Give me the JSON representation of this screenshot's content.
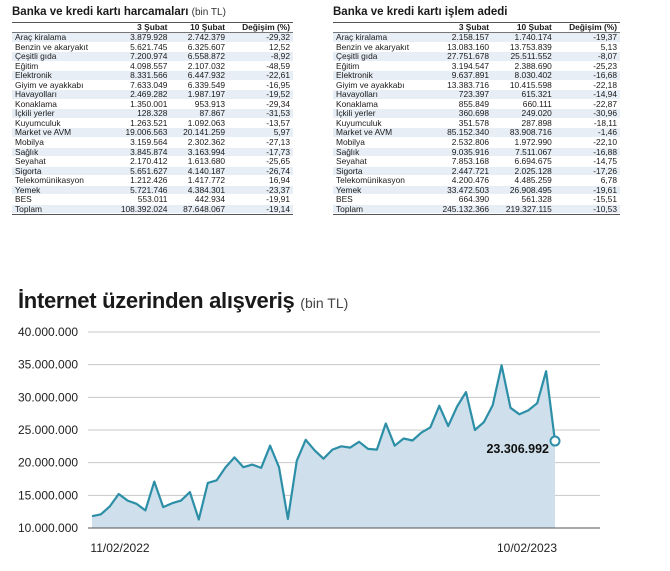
{
  "left_table": {
    "title": "Banka ve kredi kartı harcamaları",
    "unit": "(bin TL)",
    "headers": [
      "",
      "3 Şubat",
      "10 Şubat",
      "Değişim (%)"
    ],
    "rows": [
      [
        "Araç kiralama",
        "3.879.928",
        "2.742.379",
        "-29,32"
      ],
      [
        "Benzin ve akaryakıt",
        "5.621.745",
        "6.325.607",
        "12,52"
      ],
      [
        "Çeşitli gıda",
        "7.200.974",
        "6.558.872",
        "-8,92"
      ],
      [
        "Eğitim",
        "4.098.557",
        "2.107.032",
        "-48,59"
      ],
      [
        "Elektronik",
        "8.331.566",
        "6.447.932",
        "-22,61"
      ],
      [
        "Giyim ve ayakkabı",
        "7.633.049",
        "6.339.549",
        "-16,95"
      ],
      [
        "Havayolları",
        "2.469.282",
        "1.987.197",
        "-19,52"
      ],
      [
        "Konaklama",
        "1.350.001",
        "953.913",
        "-29,34"
      ],
      [
        "İçkili yerler",
        "128.328",
        "87.867",
        "-31,53"
      ],
      [
        "Kuyumculuk",
        "1.263.521",
        "1.092.063",
        "-13,57"
      ],
      [
        "Market ve AVM",
        "19.006.563",
        "20.141.259",
        "5,97"
      ],
      [
        "Mobilya",
        "3.159.564",
        "2.302.362",
        "-27,13"
      ],
      [
        "Sağlık",
        "3.845.874",
        "3.163.994",
        "-17,73"
      ],
      [
        "Seyahat",
        "2.170.412",
        "1.613.680",
        "-25,65"
      ],
      [
        "Sigorta",
        "5.651.627",
        "4.140.187",
        "-26,74"
      ],
      [
        "Telekomünikasyon",
        "1.212.426",
        "1.417.772",
        "16,94"
      ],
      [
        "Yemek",
        "5.721.746",
        "4.384.301",
        "-23,37"
      ],
      [
        "BES",
        "553.011",
        "442.934",
        "-19,91"
      ],
      [
        "Toplam",
        "108.392.024",
        "87.648.067",
        "-19,14"
      ]
    ]
  },
  "right_table": {
    "title": "Banka ve kredi kartı işlem adedi",
    "headers": [
      "",
      "3 Şubat",
      "10 Şubat",
      "Değişim (%)"
    ],
    "rows": [
      [
        "Araç kiralama",
        "2.158.157",
        "1.740.174",
        "-19,37"
      ],
      [
        "Benzin ve akaryakıt",
        "13.083.160",
        "13.753.839",
        "5,13"
      ],
      [
        "Çeşitli gıda",
        "27.751.678",
        "25.511.552",
        "-8,07"
      ],
      [
        "Eğitim",
        "3.194.547",
        "2.388.690",
        "-25,23"
      ],
      [
        "Elektronik",
        "9.637.891",
        "8.030.402",
        "-16,68"
      ],
      [
        "Giyim ve ayakkabı",
        "13.383.716",
        "10.415.598",
        "-22,18"
      ],
      [
        "Havayolları",
        "723.397",
        "615.321",
        "-14,94"
      ],
      [
        "Konaklama",
        "855.849",
        "660.111",
        "-22,87"
      ],
      [
        "İçkili yerler",
        "360.698",
        "249.020",
        "-30,96"
      ],
      [
        "Kuyumculuk",
        "351.578",
        "287.898",
        "-18,11"
      ],
      [
        "Market ve AVM",
        "85.152.340",
        "83.908.716",
        "-1,46"
      ],
      [
        "Mobilya",
        "2.532.806",
        "1.972.990",
        "-22,10"
      ],
      [
        "Sağlık",
        "9.035.916",
        "7.511.067",
        "-16,88"
      ],
      [
        "Seyahat",
        "7.853.168",
        "6.694.675",
        "-14,75"
      ],
      [
        "Sigorta",
        "2.447.721",
        "2.025.128",
        "-17,26"
      ],
      [
        "Telekomünikasyon",
        "4.200.476",
        "4.485.259",
        "6,78"
      ],
      [
        "Yemek",
        "33.472.503",
        "26.908.495",
        "-19,61"
      ],
      [
        "BES",
        "664.390",
        "561.328",
        "-15,51"
      ],
      [
        "Toplam",
        "245.132.366",
        "219.327.115",
        "-10,53"
      ]
    ]
  },
  "chart_data": {
    "type": "area",
    "title": "İnternet üzerinden alışveriş",
    "unit": "(bin TL)",
    "ylim": [
      10000000,
      40000000
    ],
    "yticks": [
      10000000,
      15000000,
      20000000,
      25000000,
      30000000,
      35000000,
      40000000
    ],
    "ytick_labels": [
      "10.000.000",
      "15.000.000",
      "20.000.000",
      "25.000.000",
      "30.000.000",
      "35.000.000",
      "40.000.000"
    ],
    "x_start_label": "11/02/2022",
    "x_end_label": "10/02/2023",
    "values": [
      11800000,
      12100000,
      13300000,
      15200000,
      14200000,
      13700000,
      12700000,
      17100000,
      13200000,
      13800000,
      14200000,
      15500000,
      11300000,
      16900000,
      17300000,
      19300000,
      20800000,
      19300000,
      19700000,
      19200000,
      22600000,
      19300000,
      11400000,
      20300000,
      23500000,
      21900000,
      20600000,
      22000000,
      22500000,
      22300000,
      23200000,
      22100000,
      22000000,
      26000000,
      22600000,
      23700000,
      23400000,
      24600000,
      25400000,
      28700000,
      25600000,
      28600000,
      30800000,
      25000000,
      26200000,
      28800000,
      34900000,
      28400000,
      27400000,
      28000000,
      29100000,
      34000000,
      23306992
    ],
    "last_value_label": "23.306.992",
    "colors": {
      "line": "#2d8fa7",
      "fill": "#cfe0ec",
      "grid": "#c8c8c8"
    }
  }
}
